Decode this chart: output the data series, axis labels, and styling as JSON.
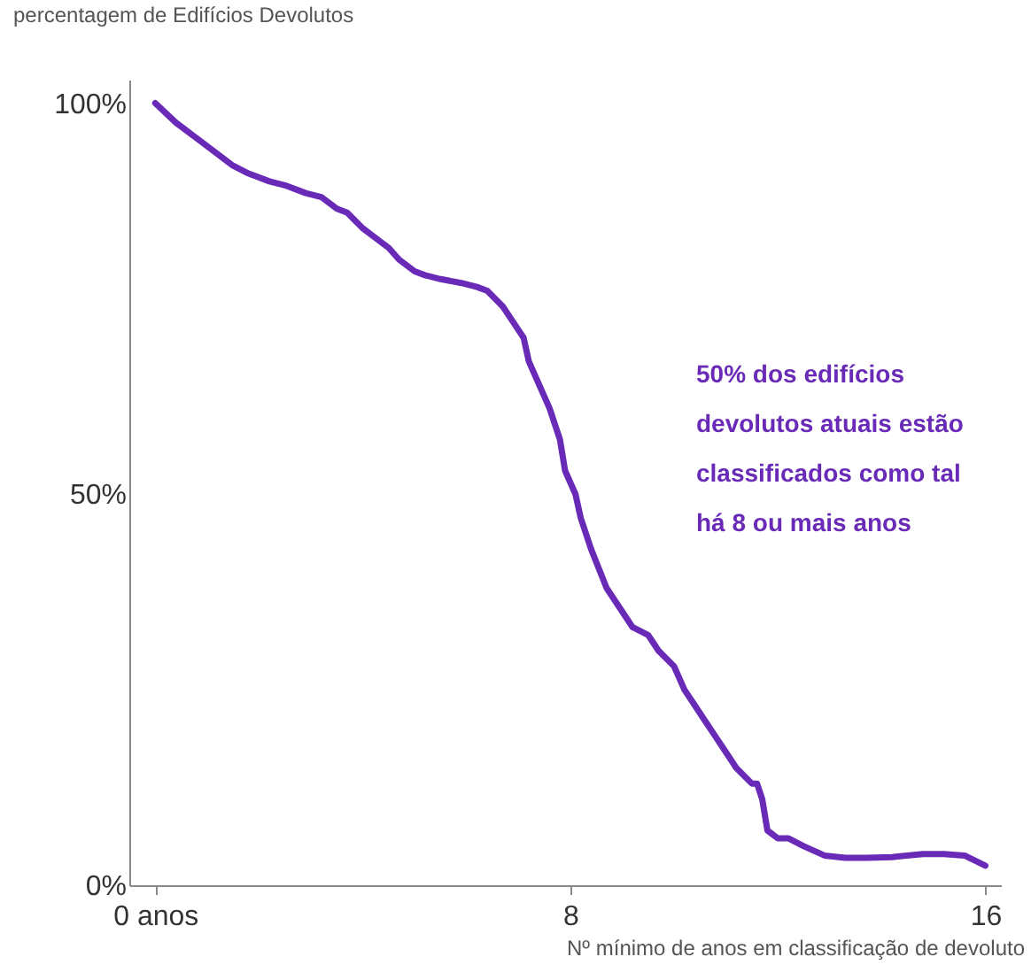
{
  "chart_data": {
    "type": "line",
    "ylabel": "percentagem de Edifícios Devolutos",
    "xlabel": "Nº mínimo de anos em classificação de devoluto",
    "annotations": [
      "50% dos edifícios\ndevolutos atuais estão\nclassificados como tal\nhá 8 ou mais anos"
    ],
    "x": [
      0,
      0.4,
      0.8,
      1.1,
      1.5,
      1.8,
      2.2,
      2.5,
      2.9,
      3.2,
      3.5,
      3.7,
      4.0,
      4.2,
      4.5,
      4.7,
      5.0,
      5.2,
      5.5,
      5.9,
      6.2,
      6.4,
      6.7,
      6.9,
      7.1,
      7.2,
      7.4,
      7.6,
      7.8,
      7.9,
      8.1,
      8.2,
      8.4,
      8.7,
      9.0,
      9.2,
      9.5,
      9.7,
      10.0,
      10.2,
      10.4,
      10.6,
      10.8,
      11.0,
      11.2,
      11.5,
      11.6,
      11.7,
      11.8,
      12.0,
      12.2,
      12.5,
      12.9,
      13.3,
      13.7,
      14.2,
      14.8,
      15.2,
      15.6,
      16.0
    ],
    "series": [
      {
        "color": "#6a2ab8",
        "values": [
          100,
          97.5,
          95.5,
          94,
          92,
          91,
          90,
          89.5,
          88.5,
          88,
          86.5,
          86,
          84,
          83,
          81.5,
          80,
          78.5,
          78,
          77.5,
          77,
          76.5,
          76,
          74,
          72,
          70,
          67,
          64,
          61,
          57,
          53,
          50,
          47,
          43,
          38,
          35,
          33,
          32,
          30,
          28,
          25,
          23,
          21,
          19,
          17,
          15,
          13,
          13,
          11,
          7,
          6,
          6,
          5,
          3.8,
          3.5,
          3.5,
          3.6,
          4,
          4,
          3.8,
          2.5
        ]
      }
    ],
    "xlim": [
      -0.5,
      16.3
    ],
    "xticks": [
      {
        "value": 0,
        "label": "0 anos"
      },
      8,
      16
    ],
    "ylim": [
      0,
      103
    ],
    "yticks": [
      {
        "value": 0,
        "label": "0%"
      },
      {
        "value": 50,
        "label": "50%"
      },
      {
        "value": 100,
        "label": "100%"
      }
    ],
    "grid": false,
    "marker": "none",
    "line_style": "solid"
  }
}
